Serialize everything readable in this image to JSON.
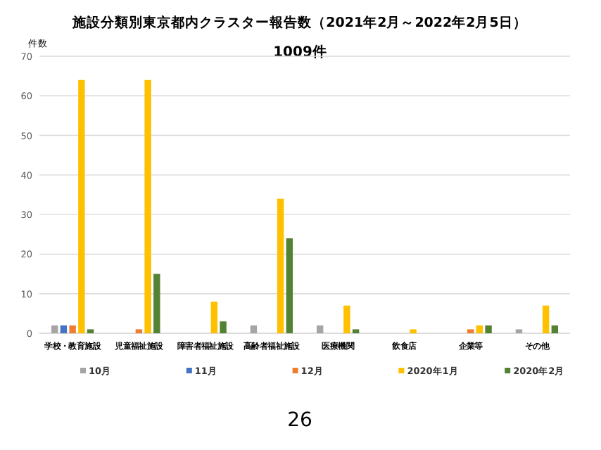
{
  "chart_data": {
    "type": "bar",
    "title": "施設分類別東京都内クラスター報告数（2021年2月～2022年2月5日）",
    "subtitle": "1009件",
    "ylabel": "件数",
    "categories": [
      "学校・教育施設",
      "児童福祉施設",
      "障害者福祉施設",
      "高齢者福祉施設",
      "医療機関",
      "飲食店",
      "企業等",
      "その他"
    ],
    "series": [
      {
        "name": "10月",
        "color": "#a5a5a5",
        "values": [
          2,
          0,
          0,
          2,
          2,
          0,
          0,
          1
        ]
      },
      {
        "name": "11月",
        "color": "#4472c4",
        "values": [
          2,
          0,
          0,
          0,
          0,
          0,
          0,
          0
        ]
      },
      {
        "name": "12月",
        "color": "#ed7d31",
        "values": [
          2,
          1,
          0,
          0,
          0,
          0,
          1,
          0
        ]
      },
      {
        "name": "2020年1月",
        "color": "#ffc000",
        "values": [
          64,
          64,
          8,
          34,
          7,
          1,
          2,
          7
        ]
      },
      {
        "name": "2020年2月",
        "color": "#548235",
        "values": [
          1,
          15,
          3,
          24,
          1,
          0,
          2,
          2
        ]
      }
    ],
    "ylim": [
      0,
      70
    ],
    "yticks": [
      0,
      10,
      20,
      30,
      40,
      50,
      60,
      70
    ],
    "grid": "y",
    "legend": "bottom",
    "annotations": [
      "26"
    ]
  }
}
